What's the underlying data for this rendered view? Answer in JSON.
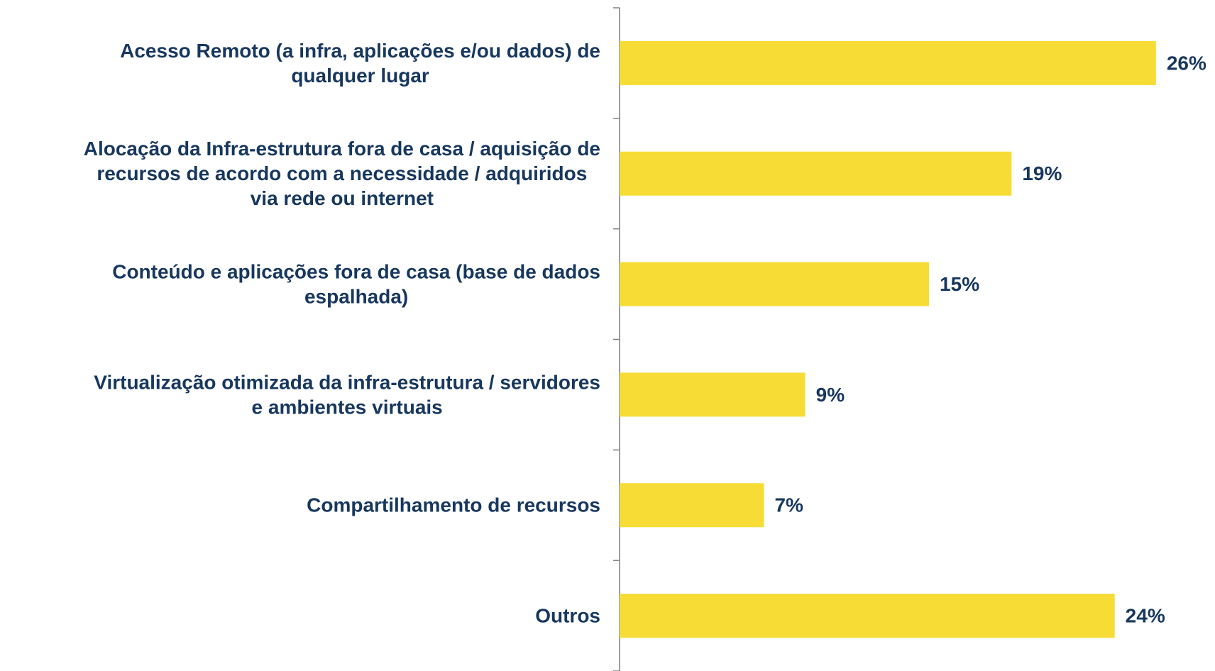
{
  "chart_data": {
    "type": "bar",
    "orientation": "horizontal",
    "categories": [
      [
        "Acesso Remoto (a infra, aplicações e/ou dados) de",
        "qualquer lugar"
      ],
      [
        "Alocação da Infra-estrutura fora de casa / aquisição de",
        "recursos de acordo com a necessidade / adquiridos",
        "via rede ou internet"
      ],
      [
        "Conteúdo e aplicações fora de casa (base de dados",
        "espalhada)"
      ],
      [
        "Virtualização otimizada da infra-estrutura / servidores",
        "e ambientes virtuais"
      ],
      [
        "Compartilhamento de recursos"
      ],
      [
        "Outros"
      ]
    ],
    "values": [
      26,
      19,
      15,
      9,
      7,
      24
    ],
    "value_labels": [
      "26%",
      "19%",
      "15%",
      "9%",
      "7%",
      "24%"
    ],
    "color": "#f7dc35"
  }
}
